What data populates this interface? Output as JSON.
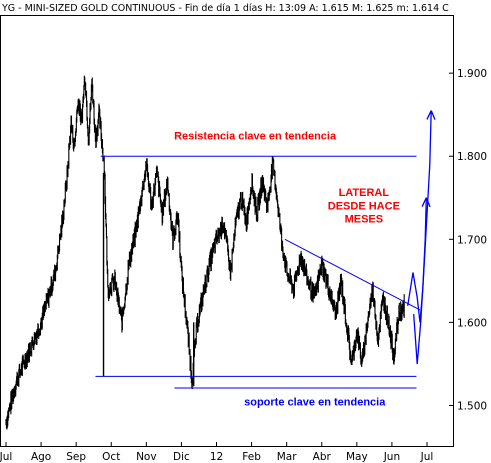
{
  "header": {
    "text": "YG - MINI-SIZED GOLD CONTINUOUS - Fin de día 1 días H: 13:09  A: 1.615  M: 1.625  m: 1.614  C"
  },
  "colors": {
    "background": "#ffffff",
    "price": "#000000",
    "lines": "#0000ff",
    "annotation_red": "#ff0000",
    "annotation_blue": "#0000ff"
  },
  "chart_data": {
    "type": "line",
    "title": "YG - MINI-SIZED GOLD CONTINUOUS - Fin de día 1 días H: 13:09  A: 1.615  M: 1.625  m: 1.614  C",
    "xlabel": "",
    "ylabel": "",
    "grid": false,
    "ylim": [
      1.45,
      1.97
    ],
    "x_tick_labels": [
      "Jul",
      "Ago",
      "Sep",
      "Oct",
      "Nov",
      "Dic",
      "12",
      "Feb",
      "Mar",
      "Abr",
      "May",
      "Jun",
      "Jul"
    ],
    "y_ticks": [
      1.5,
      1.6,
      1.7,
      1.8,
      1.9
    ],
    "y_tick_labels": [
      "1.500",
      "1.600",
      "1.700",
      "1.800",
      "1.900"
    ],
    "price_path": [
      [
        0,
        1.48
      ],
      [
        0.3,
        1.53
      ],
      [
        0.6,
        1.56
      ],
      [
        1.0,
        1.6
      ],
      [
        1.2,
        1.63
      ],
      [
        1.4,
        1.66
      ],
      [
        1.6,
        1.72
      ],
      [
        1.75,
        1.78
      ],
      [
        1.85,
        1.84
      ],
      [
        1.95,
        1.81
      ],
      [
        2.05,
        1.87
      ],
      [
        2.15,
        1.84
      ],
      [
        2.25,
        1.9
      ],
      [
        2.35,
        1.82
      ],
      [
        2.45,
        1.89
      ],
      [
        2.55,
        1.82
      ],
      [
        2.65,
        1.85
      ],
      [
        2.8,
        1.79
      ],
      [
        2.9,
        1.64
      ],
      [
        3.1,
        1.65
      ],
      [
        3.3,
        1.6
      ],
      [
        3.5,
        1.67
      ],
      [
        3.7,
        1.71
      ],
      [
        3.85,
        1.75
      ],
      [
        4.0,
        1.79
      ],
      [
        4.15,
        1.74
      ],
      [
        4.3,
        1.78
      ],
      [
        4.45,
        1.73
      ],
      [
        4.6,
        1.77
      ],
      [
        4.75,
        1.7
      ],
      [
        4.9,
        1.73
      ],
      [
        5.0,
        1.66
      ],
      [
        5.15,
        1.6
      ],
      [
        5.3,
        1.53
      ],
      [
        5.45,
        1.6
      ],
      [
        5.6,
        1.63
      ],
      [
        5.8,
        1.67
      ],
      [
        6.0,
        1.7
      ],
      [
        6.2,
        1.72
      ],
      [
        6.4,
        1.66
      ],
      [
        6.55,
        1.72
      ],
      [
        6.7,
        1.75
      ],
      [
        6.85,
        1.72
      ],
      [
        7.0,
        1.77
      ],
      [
        7.15,
        1.73
      ],
      [
        7.3,
        1.77
      ],
      [
        7.45,
        1.74
      ],
      [
        7.6,
        1.79
      ],
      [
        7.7,
        1.76
      ],
      [
        7.85,
        1.7
      ],
      [
        8.0,
        1.66
      ],
      [
        8.2,
        1.64
      ],
      [
        8.4,
        1.68
      ],
      [
        8.6,
        1.65
      ],
      [
        8.8,
        1.63
      ],
      [
        9.0,
        1.67
      ],
      [
        9.2,
        1.64
      ],
      [
        9.4,
        1.61
      ],
      [
        9.55,
        1.65
      ],
      [
        9.7,
        1.6
      ],
      [
        9.85,
        1.55
      ],
      [
        10.0,
        1.59
      ],
      [
        10.15,
        1.55
      ],
      [
        10.3,
        1.6
      ],
      [
        10.45,
        1.64
      ],
      [
        10.6,
        1.58
      ],
      [
        10.75,
        1.63
      ],
      [
        10.9,
        1.6
      ],
      [
        11.05,
        1.56
      ],
      [
        11.2,
        1.61
      ],
      [
        11.35,
        1.62
      ]
    ],
    "lines": [
      {
        "name": "resistance",
        "points": [
          [
            2.7,
            1.8
          ],
          [
            11.7,
            1.8
          ]
        ]
      },
      {
        "name": "support-upper",
        "points": [
          [
            2.55,
            1.535
          ],
          [
            11.7,
            1.535
          ]
        ]
      },
      {
        "name": "support-lower",
        "points": [
          [
            4.8,
            1.521
          ],
          [
            11.7,
            1.521
          ]
        ]
      },
      {
        "name": "descending-trendline",
        "points": [
          [
            7.95,
            1.7
          ],
          [
            11.8,
            1.615
          ]
        ]
      },
      {
        "name": "dip-wick-sep",
        "points": [
          [
            2.78,
            1.535
          ],
          [
            2.78,
            1.78
          ]
        ]
      },
      {
        "name": "dip-wick-dic",
        "points": [
          [
            5.35,
            1.523
          ],
          [
            5.35,
            1.6
          ]
        ]
      }
    ],
    "projection_arrows": [
      {
        "name": "arrow-short",
        "points": [
          [
            11.45,
            1.62
          ],
          [
            11.6,
            1.66
          ],
          [
            11.72,
            1.63
          ],
          [
            11.8,
            1.6
          ],
          [
            11.88,
            1.64
          ],
          [
            11.95,
            1.7
          ],
          [
            11.98,
            1.75
          ]
        ]
      },
      {
        "name": "arrow-long",
        "points": [
          [
            11.62,
            1.61
          ],
          [
            11.72,
            1.55
          ],
          [
            11.82,
            1.6
          ],
          [
            11.92,
            1.67
          ],
          [
            12.0,
            1.73
          ],
          [
            12.08,
            1.79
          ],
          [
            12.12,
            1.855
          ]
        ]
      }
    ],
    "annotations": [
      {
        "text": "Resistencia clave en tendencia",
        "color": "red",
        "x": 7.1,
        "y": 1.82
      },
      {
        "text": "LATERAL",
        "color": "red",
        "x": 10.2,
        "y": 1.752
      },
      {
        "text": "DESDE HACE",
        "color": "red",
        "x": 10.2,
        "y": 1.736
      },
      {
        "text": "MESES",
        "color": "red",
        "x": 10.2,
        "y": 1.72
      },
      {
        "text": "soporte clave en tendencia",
        "color": "blue",
        "x": 8.8,
        "y": 1.5
      }
    ]
  }
}
